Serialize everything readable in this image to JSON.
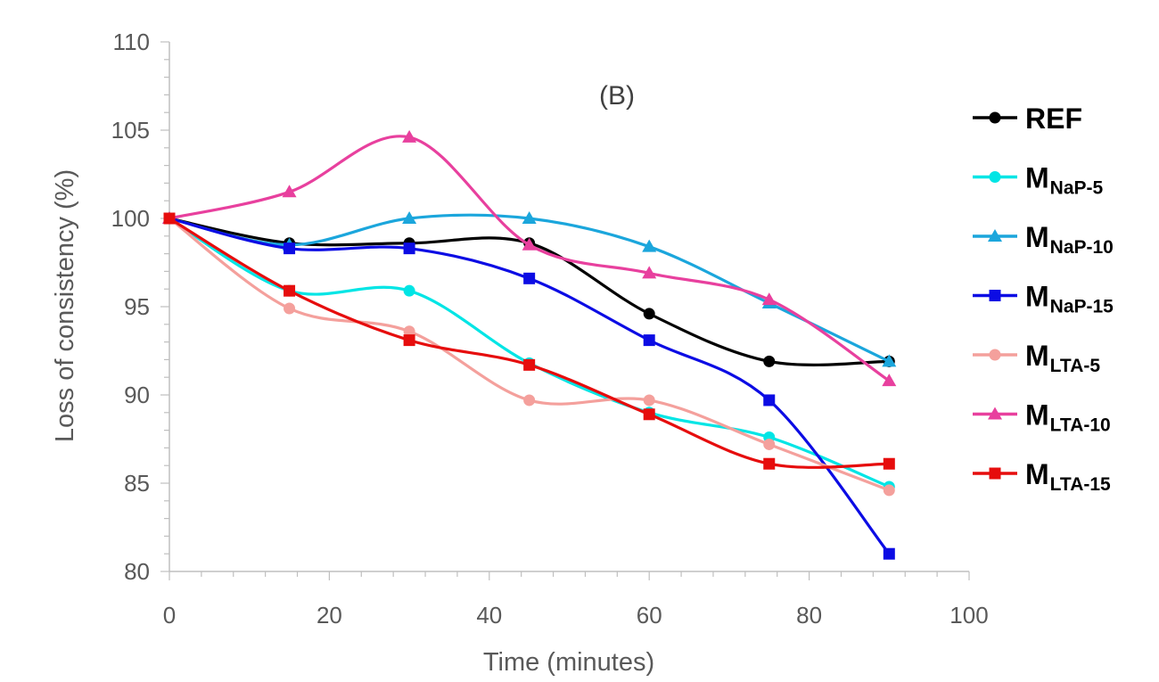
{
  "chart_data": {
    "type": "line",
    "title": "",
    "annotation": "(B)",
    "xlabel": "Time (minutes)",
    "ylabel": "Loss of consistency (%)",
    "xlim": [
      0,
      100
    ],
    "ylim": [
      80,
      110
    ],
    "x_ticks": [
      "0",
      "20",
      "40",
      "60",
      "80",
      "100"
    ],
    "y_ticks": [
      "80",
      "85",
      "90",
      "95",
      "100",
      "105",
      "110"
    ],
    "grid": false,
    "legend_position": "right",
    "x": [
      0,
      15,
      30,
      45,
      60,
      75,
      90
    ],
    "series": [
      {
        "name_main": "REF",
        "name_sub": "",
        "color": "#000000",
        "marker": "circle",
        "values": [
          100,
          98.6,
          98.6,
          98.6,
          94.6,
          91.9,
          91.9
        ]
      },
      {
        "name_main": "M",
        "name_sub": "NaP-5",
        "color": "#00e5e5",
        "marker": "circle",
        "values": [
          100,
          95.9,
          95.9,
          91.8,
          89.0,
          87.6,
          84.8
        ]
      },
      {
        "name_main": "M",
        "name_sub": "NaP-10",
        "color": "#1ba6dc",
        "marker": "triangle",
        "values": [
          100,
          98.5,
          100,
          100,
          98.4,
          95.2,
          91.9
        ]
      },
      {
        "name_main": "M",
        "name_sub": "NaP-15",
        "color": "#0c0ce4",
        "marker": "square",
        "values": [
          100,
          98.3,
          98.3,
          96.6,
          93.1,
          89.7,
          81.0
        ]
      },
      {
        "name_main": "M",
        "name_sub": "LTA-5",
        "color": "#f4a09c",
        "marker": "circle",
        "values": [
          100,
          94.9,
          93.6,
          89.7,
          89.7,
          87.2,
          84.6
        ]
      },
      {
        "name_main": "M",
        "name_sub": "LTA-10",
        "color": "#e8409e",
        "marker": "triangle",
        "values": [
          100,
          101.5,
          104.6,
          98.5,
          96.9,
          95.4,
          90.8
        ]
      },
      {
        "name_main": "M",
        "name_sub": "LTA-15",
        "color": "#e60d0d",
        "marker": "square",
        "values": [
          100,
          95.9,
          93.1,
          91.7,
          88.9,
          86.1,
          86.1
        ]
      }
    ]
  }
}
